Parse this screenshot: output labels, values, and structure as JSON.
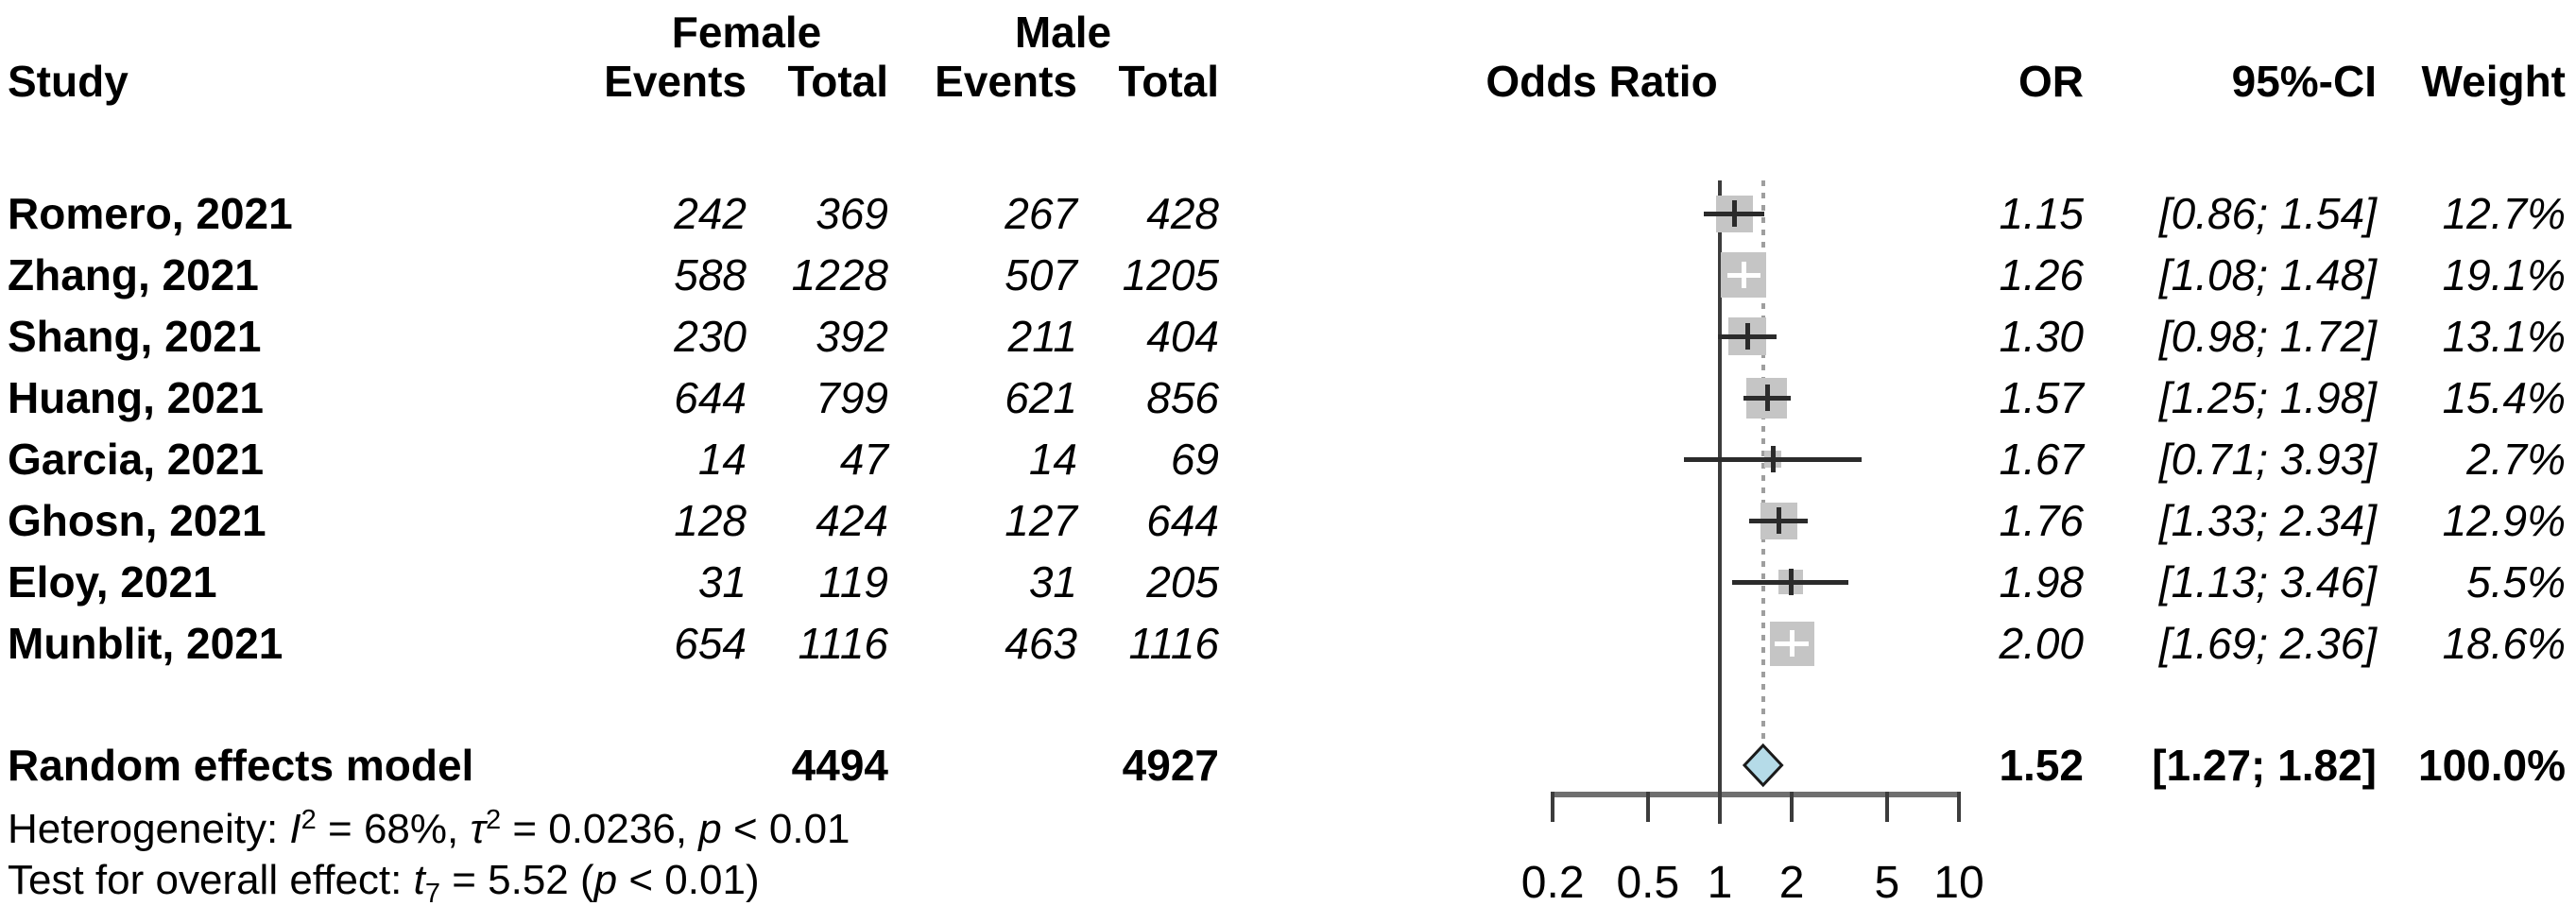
{
  "header": {
    "group_female": "Female",
    "group_male": "Male",
    "study": "Study",
    "events": "Events",
    "total": "Total",
    "odds_ratio": "Odds Ratio",
    "or": "OR",
    "ci": "95%-CI",
    "weight": "Weight"
  },
  "colors": {
    "background": "#ffffff",
    "text": "#000000",
    "square": "#c5c5c5",
    "ci_line": "#2b2b2b",
    "ci_line_inverse": "#ffffff",
    "ref_line": "#3c3c3c",
    "pooled_line_dotted": "#9e9e9e",
    "axis_bar": "#6f6f6f",
    "axis_tick": "#3c3c3c",
    "diamond_fill": "#b5dbe8",
    "diamond_stroke": "#1a1a1a"
  },
  "chart_data": {
    "type": "forest",
    "effect_measure": "Odds Ratio",
    "x_scale": "log",
    "x_range": [
      0.2,
      10
    ],
    "x_ticks": [
      {
        "v": 0.2,
        "label": "0.2"
      },
      {
        "v": 0.5,
        "label": "0.5"
      },
      {
        "v": 1,
        "label": "1"
      },
      {
        "v": 2,
        "label": "2"
      },
      {
        "v": 5,
        "label": "5"
      },
      {
        "v": 10,
        "label": "10"
      }
    ],
    "ref_line": 1,
    "pooled_dotted_line": 1.52,
    "studies": [
      {
        "study": "Romero, 2021",
        "female_events": "242",
        "female_total": "369",
        "male_events": "267",
        "male_total": "428",
        "or": 1.15,
        "ci_low": 0.86,
        "ci_high": 1.54,
        "weight": 12.7,
        "or_text": "1.15",
        "ci_text": "[0.86; 1.54]",
        "weight_text": "12.7%"
      },
      {
        "study": "Zhang, 2021",
        "female_events": "588",
        "female_total": "1228",
        "male_events": "507",
        "male_total": "1205",
        "or": 1.26,
        "ci_low": 1.08,
        "ci_high": 1.48,
        "weight": 19.1,
        "or_text": "1.26",
        "ci_text": "[1.08; 1.48]",
        "weight_text": "19.1%"
      },
      {
        "study": "Shang, 2021",
        "female_events": "230",
        "female_total": "392",
        "male_events": "211",
        "male_total": "404",
        "or": 1.3,
        "ci_low": 0.98,
        "ci_high": 1.72,
        "weight": 13.1,
        "or_text": "1.30",
        "ci_text": "[0.98; 1.72]",
        "weight_text": "13.1%"
      },
      {
        "study": "Huang, 2021",
        "female_events": "644",
        "female_total": "799",
        "male_events": "621",
        "male_total": "856",
        "or": 1.57,
        "ci_low": 1.25,
        "ci_high": 1.98,
        "weight": 15.4,
        "or_text": "1.57",
        "ci_text": "[1.25; 1.98]",
        "weight_text": "15.4%"
      },
      {
        "study": "Garcia, 2021",
        "female_events": "14",
        "female_total": "47",
        "male_events": "14",
        "male_total": "69",
        "or": 1.67,
        "ci_low": 0.71,
        "ci_high": 3.93,
        "weight": 2.7,
        "or_text": "1.67",
        "ci_text": "[0.71; 3.93]",
        "weight_text": "2.7%"
      },
      {
        "study": "Ghosn, 2021",
        "female_events": "128",
        "female_total": "424",
        "male_events": "127",
        "male_total": "644",
        "or": 1.76,
        "ci_low": 1.33,
        "ci_high": 2.34,
        "weight": 12.9,
        "or_text": "1.76",
        "ci_text": "[1.33; 2.34]",
        "weight_text": "12.9%"
      },
      {
        "study": "Eloy, 2021",
        "female_events": "31",
        "female_total": "119",
        "male_events": "31",
        "male_total": "205",
        "or": 1.98,
        "ci_low": 1.13,
        "ci_high": 3.46,
        "weight": 5.5,
        "or_text": "1.98",
        "ci_text": "[1.13; 3.46]",
        "weight_text": "5.5%"
      },
      {
        "study": "Munblit, 2021",
        "female_events": "654",
        "female_total": "1116",
        "male_events": "463",
        "male_total": "1116",
        "or": 2.0,
        "ci_low": 1.69,
        "ci_high": 2.36,
        "weight": 18.6,
        "or_text": "2.00",
        "ci_text": "[1.69; 2.36]",
        "weight_text": "18.6%"
      }
    ],
    "summary": {
      "label": "Random effects model",
      "female_total": "4494",
      "male_total": "4927",
      "or": 1.52,
      "ci_low": 1.27,
      "ci_high": 1.82,
      "or_text": "1.52",
      "ci_text": "[1.27; 1.82]",
      "weight_text": "100.0%"
    },
    "footnotes": {
      "heterogeneity_segments": [
        {
          "text": "Heterogeneity: "
        },
        {
          "text": "I",
          "style": "italic"
        },
        {
          "text": "2",
          "style": "sup"
        },
        {
          "text": " = 68%, "
        },
        {
          "text": "τ",
          "style": "italic"
        },
        {
          "text": "2",
          "style": "sup"
        },
        {
          "text": " = 0.0236, "
        },
        {
          "text": "p",
          "style": "italic"
        },
        {
          "text": " < 0.01"
        }
      ],
      "overall_effect_segments": [
        {
          "text": "Test for overall effect: "
        },
        {
          "text": "t",
          "style": "italic"
        },
        {
          "text": "7",
          "style": "sub"
        },
        {
          "text": " = 5.52 ("
        },
        {
          "text": "p",
          "style": "italic"
        },
        {
          "text": " < 0.01)"
        }
      ]
    }
  }
}
